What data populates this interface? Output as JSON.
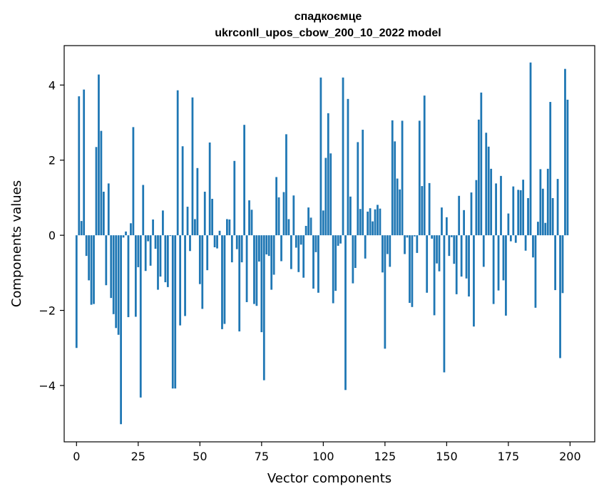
{
  "chart_data": {
    "type": "bar",
    "title_line1": "спадкоємце",
    "title_line2": "ukrconll_upos_cbow_200_10_2022 model",
    "xlabel": "Vector components",
    "ylabel": "Components values",
    "xlim": [
      -5,
      210
    ],
    "ylim": [
      -5.5,
      5.05
    ],
    "xticks": [
      0,
      25,
      50,
      75,
      100,
      125,
      150,
      175,
      200
    ],
    "yticks": [
      -4,
      -2,
      0,
      2,
      4
    ],
    "bar_color": "#1f77b4",
    "grid": false,
    "values": [
      -3.0,
      3.7,
      0.38,
      3.88,
      -0.55,
      -1.2,
      -1.85,
      -1.83,
      2.35,
      4.28,
      2.78,
      1.16,
      -1.33,
      1.38,
      -1.67,
      -2.1,
      -2.47,
      -2.65,
      -5.03,
      -0.06,
      0.1,
      -2.18,
      0.32,
      2.88,
      -2.17,
      -0.85,
      -4.32,
      1.34,
      -0.95,
      -0.16,
      -0.81,
      0.42,
      -0.36,
      -1.45,
      -1.1,
      0.66,
      -1.25,
      -1.38,
      -0.02,
      -4.08,
      -4.08,
      3.86,
      -2.4,
      2.37,
      -2.15,
      0.76,
      -0.42,
      3.67,
      0.43,
      1.79,
      -1.3,
      -1.96,
      1.16,
      -0.93,
      2.47,
      0.97,
      -0.32,
      -0.35,
      0.12,
      -2.5,
      -2.36,
      0.43,
      0.42,
      -0.72,
      1.98,
      -0.37,
      -2.56,
      -0.72,
      2.94,
      -1.78,
      0.93,
      0.68,
      -1.83,
      -1.88,
      -0.7,
      -2.58,
      -3.86,
      -0.51,
      -0.55,
      -1.45,
      -1.05,
      1.55,
      1.01,
      -0.69,
      1.15,
      2.69,
      0.43,
      -0.9,
      1.06,
      -0.33,
      -0.98,
      -0.25,
      -1.13,
      0.25,
      0.74,
      0.47,
      -1.42,
      -0.45,
      -1.53,
      4.2,
      0.66,
      2.06,
      3.25,
      2.18,
      -1.81,
      -1.48,
      -0.28,
      -0.22,
      4.2,
      -4.12,
      3.63,
      1.03,
      -1.28,
      -0.87,
      2.48,
      0.7,
      2.81,
      -0.62,
      0.63,
      0.72,
      0.37,
      0.69,
      0.81,
      0.71,
      -0.99,
      -3.02,
      -0.5,
      -0.84,
      3.06,
      2.5,
      1.51,
      1.22,
      3.05,
      -0.5,
      -0.06,
      -1.8,
      -1.91,
      -0.03,
      -0.47,
      3.05,
      1.31,
      3.72,
      -1.53,
      1.39,
      -0.09,
      -2.13,
      -0.75,
      -0.96,
      0.74,
      -3.65,
      0.48,
      -0.55,
      -0.05,
      -0.76,
      -1.57,
      1.05,
      -1.1,
      0.67,
      -1.15,
      -1.63,
      1.14,
      -2.43,
      1.47,
      3.08,
      3.8,
      -0.84,
      2.73,
      2.36,
      1.77,
      -1.83,
      1.38,
      -1.47,
      1.58,
      -1.2,
      -2.14,
      0.58,
      -0.16,
      1.3,
      -0.2,
      1.21,
      1.2,
      1.48,
      -0.41,
      0.99,
      4.6,
      -0.59,
      -1.93,
      0.36,
      1.76,
      1.24,
      0.33,
      1.77,
      3.55,
      0.99,
      -1.46,
      1.5,
      -3.27,
      -1.54,
      4.43,
      3.61
    ]
  }
}
